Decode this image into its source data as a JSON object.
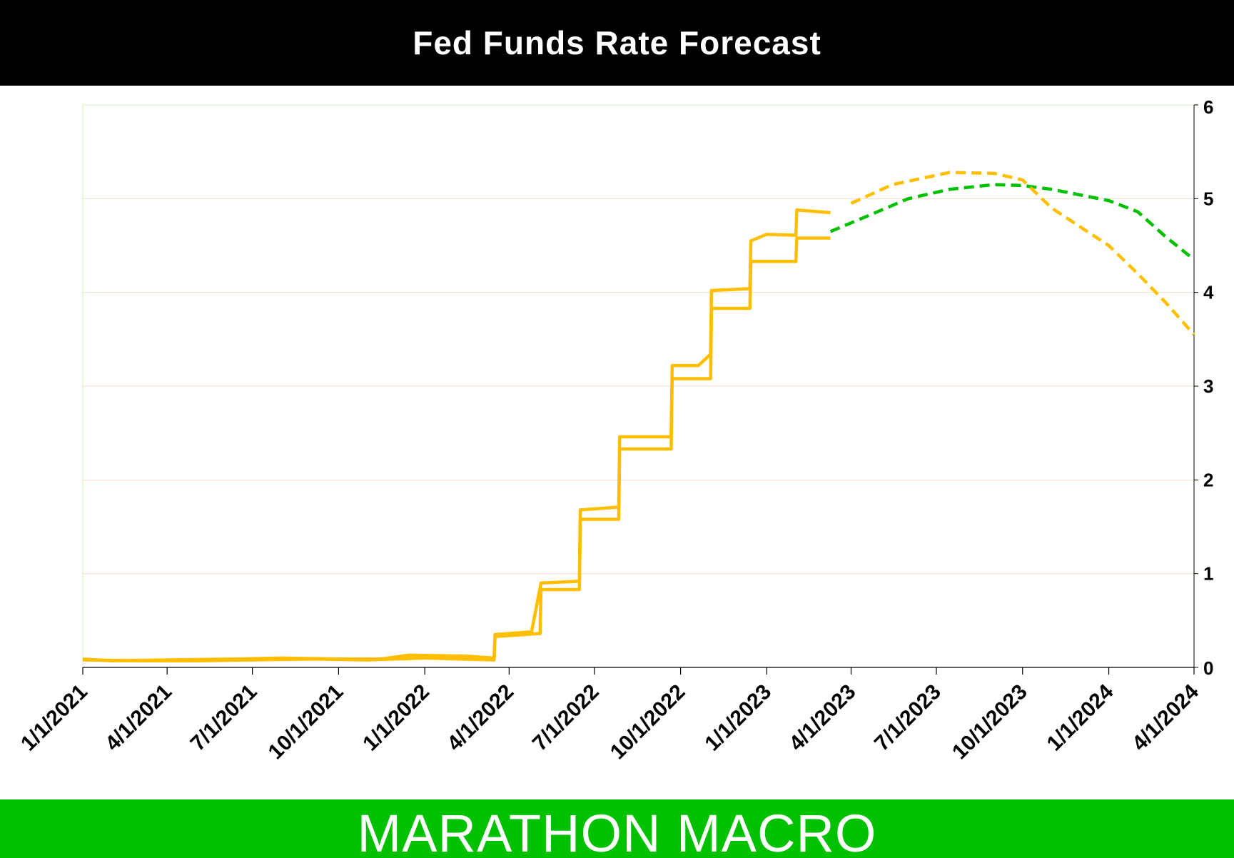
{
  "title": "Fed Funds Rate Forecast",
  "footer": "MARATHON MACRO",
  "colors": {
    "orange_series": "#ffbf00",
    "green_series": "#00c000",
    "title_bg": "#000000",
    "footer_bg": "#00c000",
    "gridline": "#f6dcc4",
    "plot_border": "#c8f0c0"
  },
  "chart_data": {
    "type": "line",
    "title": "Fed Funds Rate Forecast",
    "xlabel": "",
    "ylabel": "",
    "ylim": [
      0,
      6
    ],
    "xlim": [
      "2021-01-01",
      "2024-04-01"
    ],
    "y_axis_side": "right",
    "grid": true,
    "legend": "none",
    "x_ticks": [
      "1/1/2021",
      "4/1/2021",
      "7/1/2021",
      "10/1/2021",
      "1/1/2022",
      "4/1/2022",
      "7/1/2022",
      "10/1/2022",
      "1/1/2023",
      "4/1/2023",
      "7/1/2023",
      "10/1/2023",
      "1/1/2024",
      "4/1/2024"
    ],
    "y_ticks": [
      "0",
      "1",
      "2",
      "3",
      "4",
      "5",
      "6"
    ],
    "series": [
      {
        "color": "#ffbf00",
        "style": "solid",
        "points": [
          [
            "2021-01-01",
            0.08
          ],
          [
            "2021-03-01",
            0.07
          ],
          [
            "2021-05-01",
            0.07
          ],
          [
            "2021-07-01",
            0.08
          ],
          [
            "2021-09-01",
            0.09
          ],
          [
            "2021-11-01",
            0.08
          ],
          [
            "2022-01-01",
            0.1
          ],
          [
            "2022-03-16",
            0.08
          ],
          [
            "2022-03-17",
            0.33
          ],
          [
            "2022-05-01",
            0.36
          ],
          [
            "2022-05-04",
            0.36
          ],
          [
            "2022-05-05",
            0.83
          ],
          [
            "2022-06-15",
            0.83
          ],
          [
            "2022-06-16",
            1.58
          ],
          [
            "2022-07-27",
            1.58
          ],
          [
            "2022-07-28",
            2.33
          ],
          [
            "2022-09-21",
            2.33
          ],
          [
            "2022-09-22",
            3.08
          ],
          [
            "2022-11-02",
            3.08
          ],
          [
            "2022-11-03",
            3.83
          ],
          [
            "2022-12-14",
            3.83
          ],
          [
            "2022-12-15",
            4.33
          ],
          [
            "2023-02-01",
            4.33
          ],
          [
            "2023-02-02",
            4.58
          ],
          [
            "2023-03-10",
            4.58
          ]
        ]
      },
      {
        "color": "#ffbf00",
        "style": "solid",
        "points": [
          [
            "2021-01-01",
            0.09
          ],
          [
            "2021-02-01",
            0.07
          ],
          [
            "2021-04-01",
            0.08
          ],
          [
            "2021-06-15",
            0.09
          ],
          [
            "2021-08-01",
            0.1
          ],
          [
            "2021-10-01",
            0.09
          ],
          [
            "2021-11-15",
            0.09
          ],
          [
            "2021-12-15",
            0.13
          ],
          [
            "2022-02-15",
            0.12
          ],
          [
            "2022-03-16",
            0.1
          ],
          [
            "2022-03-17",
            0.35
          ],
          [
            "2022-04-25",
            0.38
          ],
          [
            "2022-05-05",
            0.9
          ],
          [
            "2022-06-15",
            0.92
          ],
          [
            "2022-06-16",
            1.68
          ],
          [
            "2022-07-27",
            1.71
          ],
          [
            "2022-07-28",
            2.46
          ],
          [
            "2022-09-21",
            2.46
          ],
          [
            "2022-09-22",
            3.22
          ],
          [
            "2022-10-20",
            3.22
          ],
          [
            "2022-11-02",
            3.34
          ],
          [
            "2022-11-03",
            4.02
          ],
          [
            "2022-12-14",
            4.04
          ],
          [
            "2022-12-15",
            4.55
          ],
          [
            "2023-01-01",
            4.62
          ],
          [
            "2023-02-01",
            4.61
          ],
          [
            "2023-02-02",
            4.88
          ],
          [
            "2023-03-10",
            4.85
          ]
        ]
      },
      {
        "color": "#00c000",
        "style": "dashed",
        "points": [
          [
            "2023-03-10",
            4.65
          ],
          [
            "2023-04-15",
            4.8
          ],
          [
            "2023-06-01",
            5.0
          ],
          [
            "2023-07-15",
            5.1
          ],
          [
            "2023-09-01",
            5.15
          ],
          [
            "2023-10-01",
            5.14
          ],
          [
            "2023-11-01",
            5.1
          ],
          [
            "2024-01-01",
            4.98
          ],
          [
            "2024-02-01",
            4.86
          ],
          [
            "2024-03-01",
            4.6
          ],
          [
            "2024-04-01",
            4.35
          ]
        ]
      },
      {
        "color": "#ffbf00",
        "style": "dashed",
        "points": [
          [
            "2023-04-01",
            4.95
          ],
          [
            "2023-05-15",
            5.15
          ],
          [
            "2023-07-15",
            5.28
          ],
          [
            "2023-09-01",
            5.27
          ],
          [
            "2023-10-01",
            5.2
          ],
          [
            "2023-11-01",
            4.9
          ],
          [
            "2024-01-01",
            4.5
          ],
          [
            "2024-02-01",
            4.2
          ],
          [
            "2024-03-01",
            3.9
          ],
          [
            "2024-04-01",
            3.55
          ]
        ]
      }
    ]
  }
}
